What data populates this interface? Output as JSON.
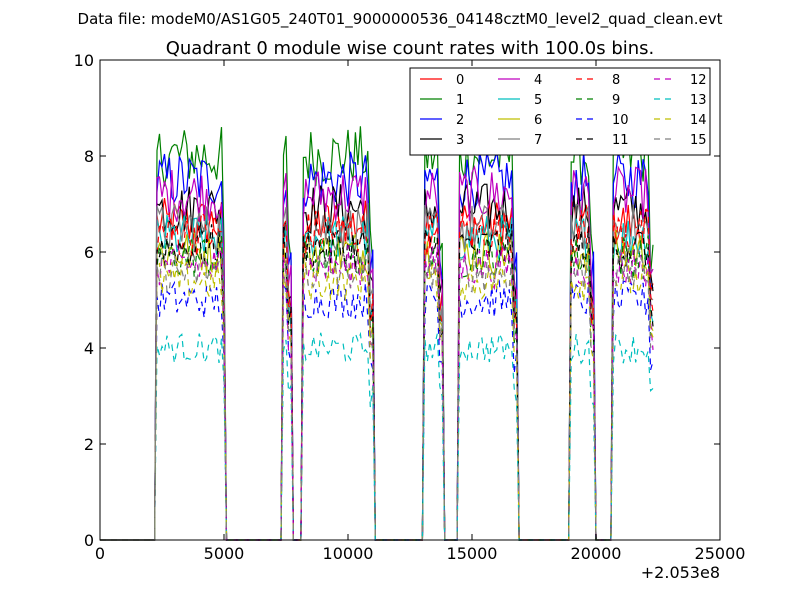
{
  "figure": {
    "suptitle": "Data file: modeM0/AS1G05_240T01_9000000536_04148cztM0_level2_quad_clean.evt",
    "title": "Quadrant 0 module wise count rates with 100.0s bins.",
    "offset_label": "+2.053e8"
  },
  "chart_data": {
    "type": "line",
    "title": "Quadrant 0 module wise count rates with 100.0s bins.",
    "xlabel": "",
    "ylabel": "",
    "xlim": [
      0,
      25000
    ],
    "ylim": [
      0,
      10
    ],
    "x_offset": "+2.053e8",
    "xticks": [
      0,
      5000,
      10000,
      15000,
      20000,
      25000
    ],
    "yticks": [
      0,
      2,
      4,
      6,
      8,
      10
    ],
    "grid": false,
    "legend_position": "top-right",
    "legend_columns": 4,
    "segments": [
      [
        2300,
        5050
      ],
      [
        7350,
        7700
      ],
      [
        8150,
        11000
      ],
      [
        13100,
        13800
      ],
      [
        14500,
        16800
      ],
      [
        19000,
        19900
      ],
      [
        20700,
        22300
      ]
    ],
    "series": [
      {
        "name": "0",
        "color": "#ff0000",
        "dash": "solid",
        "level": 6.6
      },
      {
        "name": "1",
        "color": "#008000",
        "dash": "solid",
        "level": 8.0
      },
      {
        "name": "2",
        "color": "#0000ff",
        "dash": "solid",
        "level": 7.5
      },
      {
        "name": "3",
        "color": "#000000",
        "dash": "solid",
        "level": 6.9
      },
      {
        "name": "4",
        "color": "#bf00bf",
        "dash": "solid",
        "level": 7.2
      },
      {
        "name": "5",
        "color": "#00bfbf",
        "dash": "solid",
        "level": 6.3
      },
      {
        "name": "6",
        "color": "#bfbf00",
        "dash": "solid",
        "level": 6.0
      },
      {
        "name": "7",
        "color": "#808080",
        "dash": "solid",
        "level": 6.5
      },
      {
        "name": "8",
        "color": "#ff0000",
        "dash": "dashed",
        "level": 6.4
      },
      {
        "name": "9",
        "color": "#008000",
        "dash": "dashed",
        "level": 5.9
      },
      {
        "name": "10",
        "color": "#0000ff",
        "dash": "dashed",
        "level": 5.0
      },
      {
        "name": "11",
        "color": "#000000",
        "dash": "dashed",
        "level": 6.1
      },
      {
        "name": "12",
        "color": "#bf00bf",
        "dash": "dashed",
        "level": 5.7
      },
      {
        "name": "13",
        "color": "#00bfbf",
        "dash": "dashed",
        "level": 4.0
      },
      {
        "name": "14",
        "color": "#bfbf00",
        "dash": "dashed",
        "level": 5.4
      },
      {
        "name": "15",
        "color": "#808080",
        "dash": "dashed",
        "level": 5.6
      }
    ]
  }
}
